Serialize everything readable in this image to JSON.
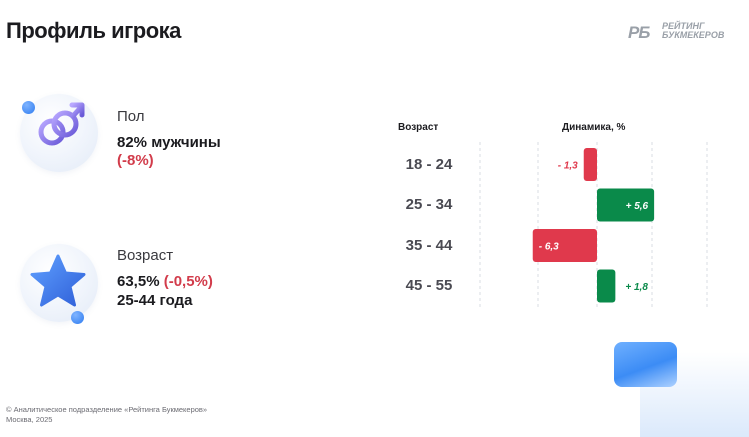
{
  "page": {
    "title": "Профиль игрока"
  },
  "brand": {
    "mark": "РБ",
    "line1": "РЕЙТИНГ",
    "line2": "БУКМЕКЕРОВ"
  },
  "gender": {
    "label": "Пол",
    "value": "82% мужчины",
    "change": "(-8%)",
    "icon": "gender-symbol-icon"
  },
  "age_info": {
    "label": "Возраст",
    "value": "63,5%",
    "change": "(-0,5%)",
    "range": "25-44 года",
    "icon": "star-icon"
  },
  "table": {
    "age_header": "Возраст",
    "dynamics_header": "Динамика, %"
  },
  "chart_data": {
    "type": "bar",
    "orientation": "horizontal",
    "categories": [
      "18 - 24",
      "25 - 34",
      "35 - 44",
      "45 - 55"
    ],
    "values": [
      -1.3,
      5.6,
      -6.3,
      1.8
    ],
    "labels": [
      "- 1,3",
      "+ 5,6",
      "- 6,3",
      "+ 1,8"
    ],
    "xlabel": "Динамика, %",
    "ylabel": "Возраст",
    "positive_color": "#0a8a4a",
    "negative_color": "#e0394c",
    "grid": true
  },
  "footer": {
    "line1": "© Аналитическое подразделение «Рейтинга Букмекеров»",
    "line2": "Москва, 2025"
  },
  "colors": {
    "accent_blue": "#2f7cf0",
    "negative": "#d23c4b"
  }
}
